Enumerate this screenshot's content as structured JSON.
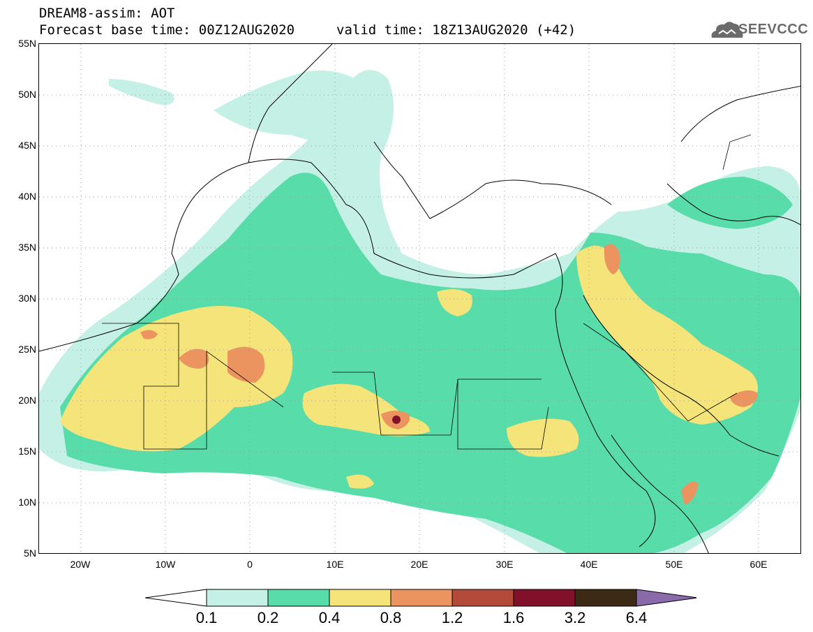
{
  "header": {
    "title": "DREAM8-assim: AOT",
    "forecast_base": "Forecast base time: 00Z12AUG2020",
    "valid_time": "valid time: 18Z13AUG2020 (+42)"
  },
  "logo": {
    "text": "SEEVCCC",
    "icon": "cloud-icon"
  },
  "map": {
    "lon_range": [
      -25,
      65
    ],
    "lat_range": [
      5,
      55
    ],
    "y_ticks": [
      "55N",
      "50N",
      "45N",
      "40N",
      "35N",
      "30N",
      "25N",
      "20N",
      "15N",
      "10N",
      "5N"
    ],
    "x_ticks": [
      "20W",
      "10W",
      "0",
      "10E",
      "20E",
      "30E",
      "40E",
      "50E",
      "60E"
    ],
    "grid": "dotted"
  },
  "colorbar": {
    "labels": [
      "0.1",
      "0.2",
      "0.4",
      "0.8",
      "1.2",
      "1.6",
      "3.2",
      "6.4"
    ],
    "colors": [
      "#c4f0e6",
      "#57dcaa",
      "#f5e47a",
      "#eb9460",
      "#b44a3a",
      "#82102a",
      "#3d2a16"
    ],
    "over_color": "#8a6aa8",
    "under_color": "#ffffff"
  }
}
